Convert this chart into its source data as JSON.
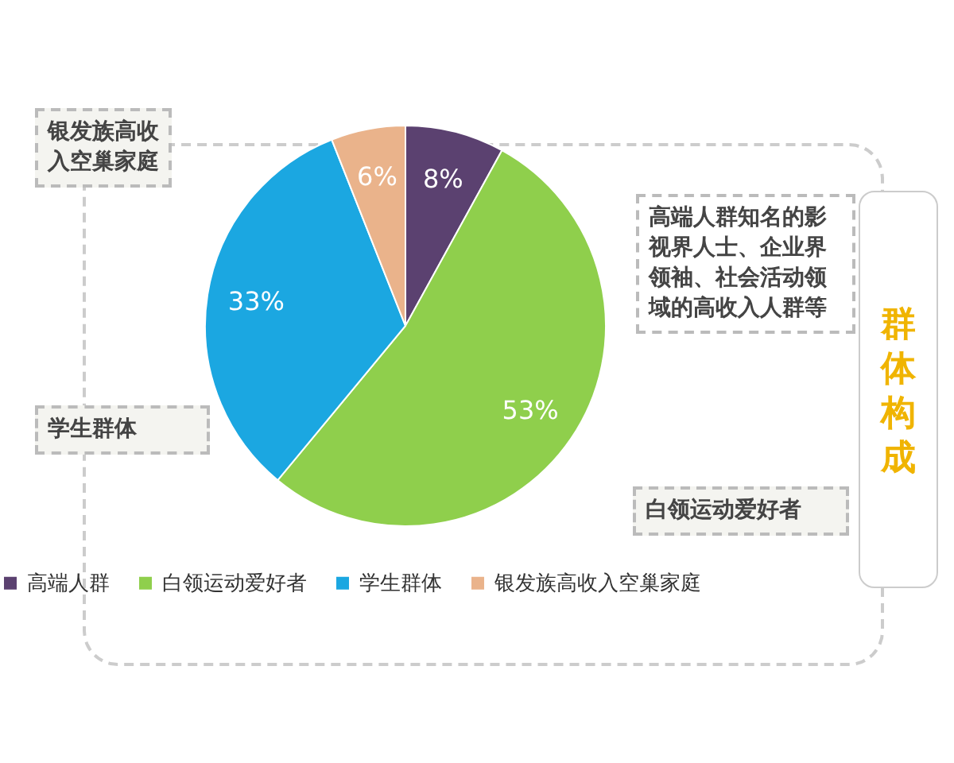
{
  "chart_data": {
    "type": "pie",
    "title": "群体构成",
    "categories": [
      "高端人群",
      "白领运动爱好者",
      "学生群体",
      "银发族高收入空巢家庭"
    ],
    "values": [
      8,
      53,
      33,
      6
    ],
    "colors": [
      "#5b4170",
      "#8fcf4c",
      "#1ba7e1",
      "#eab38b"
    ],
    "value_labels": [
      "8%",
      "53%",
      "33%",
      "6%"
    ],
    "legend": "bottom",
    "annotations": [
      "银发族高收入空巢家庭",
      "高端人群知名的影视界人士、企业界领袖、社会活动领域的高收入人群等",
      "学生群体",
      "白领运动爱好者"
    ]
  }
}
